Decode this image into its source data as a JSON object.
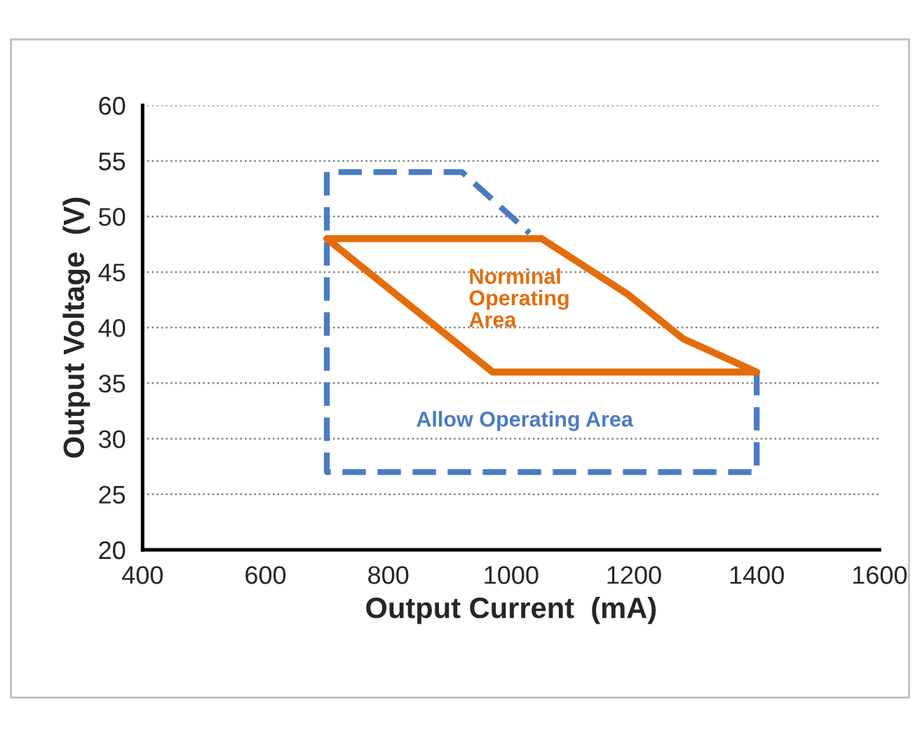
{
  "chart_data": {
    "type": "line",
    "xlabel": "Output Current  (mA)",
    "ylabel": "Output Voltage  (V)",
    "xlim": [
      400,
      1600
    ],
    "xticks": [
      400,
      600,
      800,
      1000,
      1200,
      1400,
      1600
    ],
    "ylim": [
      20,
      60
    ],
    "yticks": [
      20,
      25,
      30,
      35,
      40,
      45,
      50,
      55,
      60
    ],
    "grid": "y",
    "legend": false,
    "marker": "none",
    "series": [
      {
        "name": "Allow Operating Area",
        "color": "#4a7cc4",
        "line_style": "dashed",
        "x": [
          1400,
          1400,
          700,
          700,
          920,
          1030
        ],
        "values": [
          36,
          27,
          27,
          54,
          54,
          48.5
        ]
      },
      {
        "name": "Norminal\nOperating\nArea",
        "color": "#e46c0a",
        "line_style": "solid",
        "x": [
          1050,
          1190,
          1280,
          1400,
          970,
          700,
          1050,
          1190
        ],
        "values": [
          48,
          43,
          39,
          36,
          36,
          48,
          48,
          43
        ]
      }
    ]
  }
}
